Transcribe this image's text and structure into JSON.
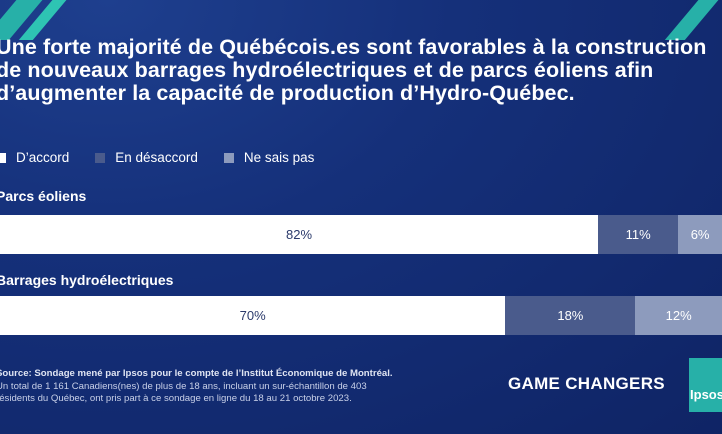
{
  "title": "Une forte majorité de Québécois.es sont favorables à la construction de nouveaux barrages hydroélectriques et de parcs éoliens afin d’augmenter la capacité de production d’Hydro-Québec.",
  "legend": [
    {
      "label": "D’accord",
      "color": "#ffffff"
    },
    {
      "label": "En désaccord",
      "color": "#4a5b8c"
    },
    {
      "label": "Ne sais pas",
      "color": "#8d9bbd"
    }
  ],
  "chart_data": {
    "type": "bar",
    "orientation": "horizontal",
    "stacked": true,
    "categories": [
      "Parcs éoliens",
      "Barrages hydroélectriques"
    ],
    "series": [
      {
        "name": "D’accord",
        "values": [
          82,
          70
        ],
        "labels": [
          "82%",
          "70%"
        ]
      },
      {
        "name": "En désaccord",
        "values": [
          11,
          18
        ],
        "labels": [
          "11%",
          "18%"
        ]
      },
      {
        "name": "Ne sais pas",
        "values": [
          6,
          12
        ],
        "labels": [
          "6%",
          "12%"
        ]
      }
    ]
  },
  "source": {
    "bold": "Source: Sondage mené par Ipsos pour le compte de l’Institut Économique de Montréal.",
    "text": " Un total de 1 161 Canadiens(nes) de plus de 18 ans, incluant un sur-échantillon de 403 résidents du Québec, ont pris part à ce sondage en ligne du 18 au 21 octobre 2023."
  },
  "brand": "GAME CHANGERS",
  "logo_text": "Ipsos"
}
